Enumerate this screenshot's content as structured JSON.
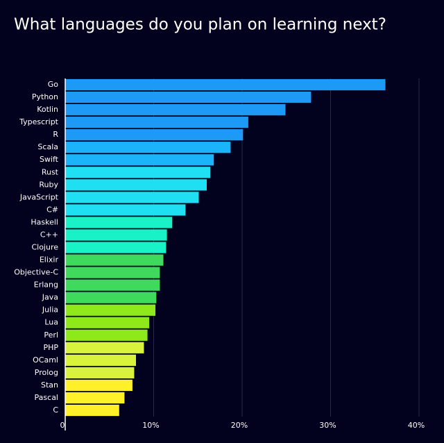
{
  "chart_data": {
    "type": "barh",
    "title": "What languages do you plan on learning next?",
    "categories": [
      "Go",
      "Python",
      "Kotlin",
      "Typescript",
      "R",
      "Scala",
      "Swift",
      "Rust",
      "Ruby",
      "JavaScript",
      "C#",
      "Haskell",
      "C++",
      "Clojure",
      "Elixir",
      "Objective-C",
      "Erlang",
      "Java",
      "Julia",
      "Lua",
      "Perl",
      "PHP",
      "OCaml",
      "Prolog",
      "Stan",
      "Pascal",
      "C"
    ],
    "values": [
      36.2,
      27.8,
      24.9,
      20.7,
      20.1,
      18.7,
      16.8,
      16.4,
      16.0,
      15.1,
      13.6,
      12.1,
      11.5,
      11.4,
      11.1,
      10.7,
      10.7,
      10.3,
      10.2,
      9.5,
      9.3,
      8.9,
      8.0,
      7.8,
      7.6,
      6.7,
      6.1
    ],
    "colors": [
      "#1c9af6",
      "#1c9af6",
      "#1c9af6",
      "#1c9af6",
      "#1c9af6",
      "#1bb4fb",
      "#1bb4fb",
      "#1ee0f2",
      "#1ee0f2",
      "#1ee0f2",
      "#1ee0f2",
      "#18f2c6",
      "#18f2c6",
      "#18f2c6",
      "#3fd95c",
      "#3fd95c",
      "#3fd95c",
      "#3fd95c",
      "#8ee81a",
      "#8ee81a",
      "#8ee81a",
      "#d9f23c",
      "#d9f23c",
      "#d9f23c",
      "#fff02a",
      "#fff02a",
      "#fff02a"
    ],
    "xlim": [
      0,
      40
    ],
    "xticks": [
      0,
      {
        "value": 10,
        "label": "10%"
      },
      {
        "value": 20,
        "label": "20%"
      },
      {
        "value": 30,
        "label": "30%"
      },
      {
        "value": 40,
        "label": "40%"
      }
    ],
    "grid": true
  }
}
